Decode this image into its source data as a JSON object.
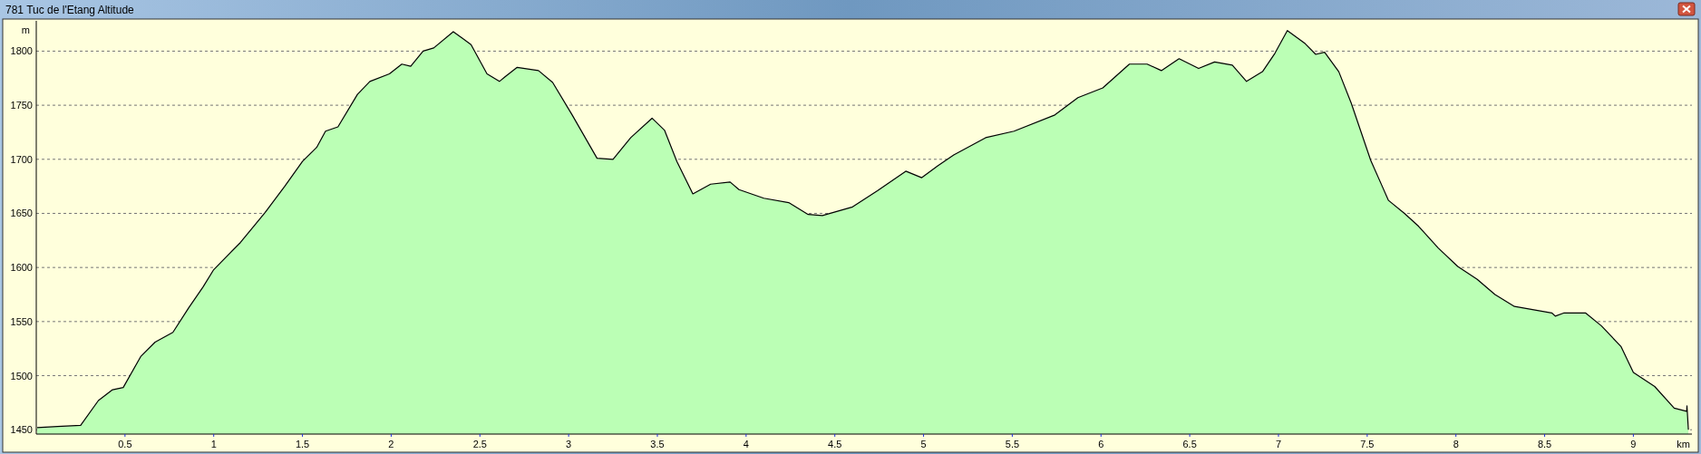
{
  "chart_data": {
    "type": "area",
    "title": "781 Tuc de l'Etang Altitude",
    "xlabel": "km",
    "ylabel": "m",
    "xlim": [
      0,
      9.33
    ],
    "ylim": [
      1446,
      1828
    ],
    "xticks": [
      0.5,
      1,
      1.5,
      2,
      2.5,
      3,
      3.5,
      4,
      4.5,
      5,
      5.5,
      6,
      6.5,
      7,
      7.5,
      8,
      8.5,
      9
    ],
    "yticks": [
      1450,
      1500,
      1550,
      1600,
      1650,
      1700,
      1750,
      1800
    ],
    "grid": "y",
    "line_style": "solid",
    "series": [
      {
        "color": "#bbffb5",
        "x": [
          0.005,
          0.12,
          0.25,
          0.35,
          0.43,
          0.49,
          0.59,
          0.67,
          0.77,
          0.86,
          0.94,
          1.0,
          1.15,
          1.29,
          1.4,
          1.5,
          1.58,
          1.63,
          1.7,
          1.81,
          1.88,
          1.99,
          2.06,
          2.11,
          2.18,
          2.24,
          2.35,
          2.45,
          2.54,
          2.61,
          2.64,
          2.71,
          2.83,
          2.91,
          3.02,
          3.16,
          3.25,
          3.35,
          3.47,
          3.54,
          3.61,
          3.7,
          3.8,
          3.91,
          3.96,
          4.1,
          4.24,
          4.35,
          4.43,
          4.6,
          4.74,
          4.9,
          4.99,
          5.08,
          5.17,
          5.35,
          5.51,
          5.74,
          5.87,
          6.01,
          6.16,
          6.26,
          6.34,
          6.44,
          6.55,
          6.64,
          6.74,
          6.82,
          6.91,
          6.98,
          7.05,
          7.15,
          7.21,
          7.26,
          7.34,
          7.41,
          7.52,
          7.62,
          7.71,
          7.79,
          7.9,
          8.01,
          8.12,
          8.22,
          8.33,
          8.54,
          8.56,
          8.61,
          8.73,
          8.82,
          8.93,
          9.0,
          9.12,
          9.23,
          9.3,
          9.302,
          9.31
        ],
        "values": [
          1452,
          1453,
          1454,
          1477,
          1487,
          1489,
          1518,
          1531,
          1540,
          1563,
          1582,
          1598,
          1623,
          1651,
          1675,
          1698,
          1711,
          1726,
          1730,
          1760,
          1772,
          1779,
          1788,
          1786,
          1800,
          1803,
          1818,
          1806,
          1779,
          1772,
          1776,
          1785,
          1782,
          1771,
          1741,
          1701,
          1700,
          1720,
          1738,
          1727,
          1698,
          1668,
          1677,
          1679,
          1672,
          1664,
          1660,
          1649,
          1648,
          1656,
          1671,
          1689,
          1683,
          1694,
          1704,
          1720,
          1726,
          1741,
          1757,
          1766,
          1788,
          1788,
          1782,
          1793,
          1784,
          1790,
          1787,
          1772,
          1781,
          1798,
          1819,
          1807,
          1797,
          1799,
          1781,
          1752,
          1699,
          1662,
          1650,
          1638,
          1618,
          1601,
          1589,
          1575,
          1564,
          1558,
          1555,
          1558,
          1558,
          1546,
          1527,
          1503,
          1490,
          1470,
          1467,
          1472,
          1450
        ]
      }
    ]
  }
}
